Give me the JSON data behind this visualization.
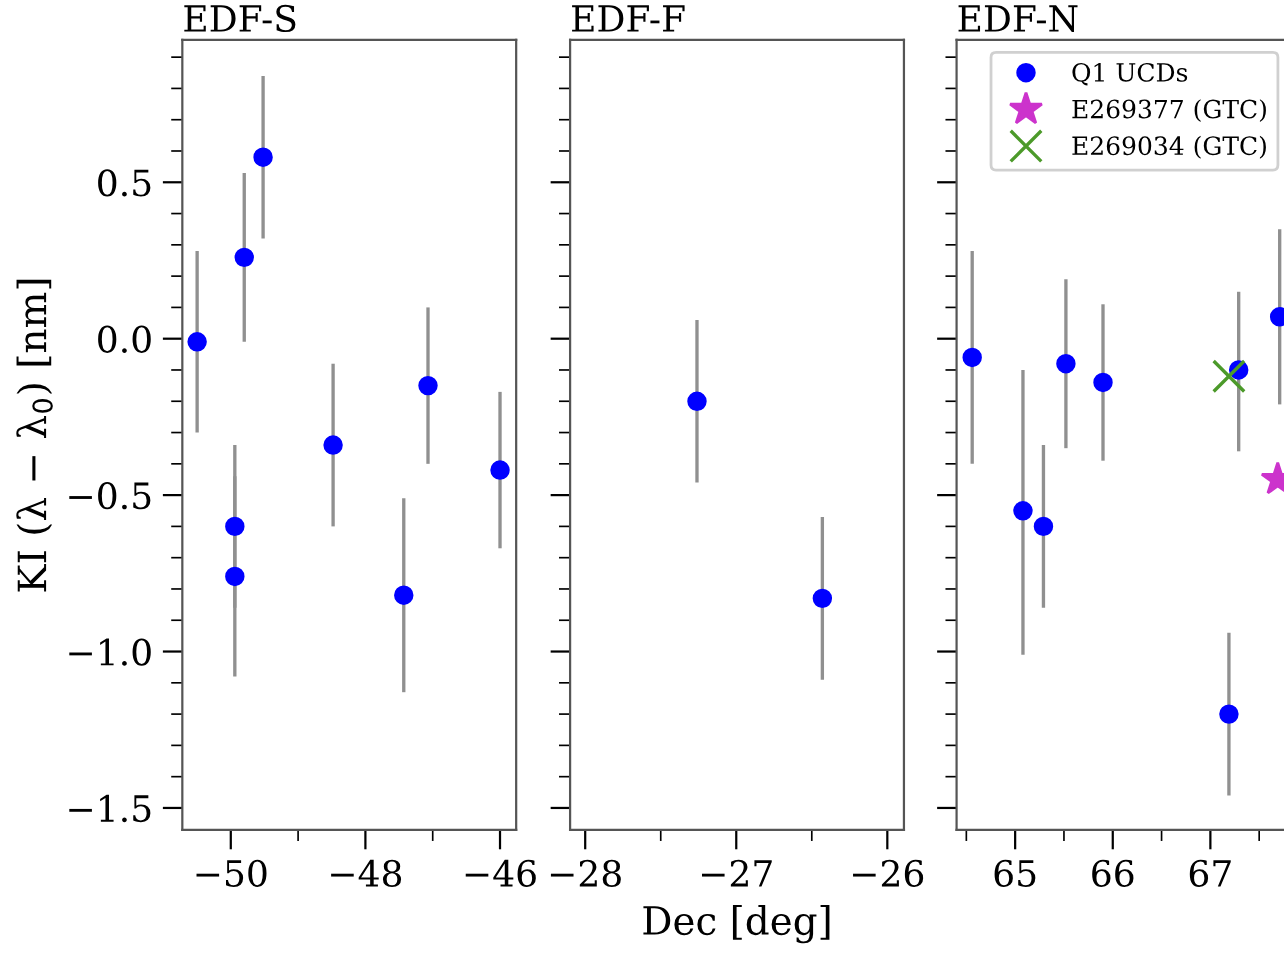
{
  "chart_data": [
    {
      "type": "scatter",
      "title": "EDF-S",
      "ylabel": "KI (λ − λ$_{0}$) [nm]",
      "xlim": [
        -50.72,
        -45.76
      ],
      "xticks": [
        -50,
        -48,
        -46
      ],
      "ylim": [
        -1.57,
        0.955
      ],
      "yticks": [
        -1.5,
        {
          "value": -1,
          "label": "−1.0"
        },
        -0.5,
        {
          "value": 0,
          "label": "0.0"
        },
        0.5
      ],
      "grid": false,
      "legend": false,
      "series": [
        {
          "color": "#0000ff",
          "marker": "circle",
          "x": [
            -50.5,
            -49.8,
            -49.52,
            -49.94,
            -49.94,
            -48.48,
            -47.43,
            -47.07,
            -46.0
          ],
          "values": [
            -0.01,
            0.26,
            0.58,
            -0.6,
            -0.76,
            -0.34,
            -0.82,
            -0.15,
            -0.42
          ],
          "errors": [
            [
              -0.3,
              0.28
            ],
            [
              -0.01,
              0.53
            ],
            [
              0.32,
              0.84
            ],
            [
              -0.86,
              -0.34
            ],
            [
              -1.08,
              -0.44
            ],
            [
              -0.6,
              -0.08
            ],
            [
              -1.13,
              -0.51
            ],
            [
              -0.4,
              0.1
            ],
            [
              -0.67,
              -0.17
            ]
          ]
        }
      ]
    },
    {
      "type": "scatter",
      "title": "EDF-F",
      "xlabel": "Dec [deg]",
      "xlim": [
        -28.1,
        -25.89
      ],
      "xticks": [
        -28,
        -27,
        -26
      ],
      "ylim": [
        -1.57,
        0.955
      ],
      "tick_labels": "x",
      "grid": false,
      "legend": false,
      "series": [
        {
          "color": "#0000ff",
          "marker": "circle",
          "x": [
            -27.26,
            -26.43
          ],
          "values": [
            -0.2,
            -0.83
          ],
          "errors": [
            [
              -0.46,
              0.06
            ],
            [
              -1.09,
              -0.57
            ]
          ]
        }
      ]
    },
    {
      "type": "scatter",
      "title": "EDF-N",
      "xlim": [
        64.4,
        67.82
      ],
      "xticks": [
        65,
        66,
        67
      ],
      "ylim": [
        -1.57,
        0.955
      ],
      "tick_labels": "x",
      "grid": false,
      "legend": "top right",
      "series": [
        {
          "name": "Q1 UCDs",
          "color": "#0000ff",
          "marker": "circle",
          "x": [
            64.56,
            65.08,
            65.29,
            65.52,
            65.9,
            67.29,
            67.19,
            67.71
          ],
          "values": [
            -0.06,
            -0.55,
            -0.6,
            -0.08,
            -0.14,
            -0.1,
            -1.2,
            0.07
          ],
          "errors": [
            [
              -0.4,
              0.28
            ],
            [
              -1.01,
              -0.1
            ],
            [
              -0.86,
              -0.34
            ],
            [
              -0.35,
              0.19
            ],
            [
              -0.39,
              0.11
            ],
            [
              -0.36,
              0.15
            ],
            [
              -1.46,
              -0.94
            ],
            [
              -0.21,
              0.35
            ]
          ]
        },
        {
          "name": "E269377 (GTC)",
          "color": "#cc33cc",
          "marker": "star",
          "x": [
            67.69
          ],
          "values": [
            -0.45
          ]
        },
        {
          "name": "E269034 (GTC)",
          "color": "#4c9a2a",
          "marker": "cross",
          "x": [
            67.19
          ],
          "values": [
            -0.12
          ]
        }
      ]
    }
  ]
}
